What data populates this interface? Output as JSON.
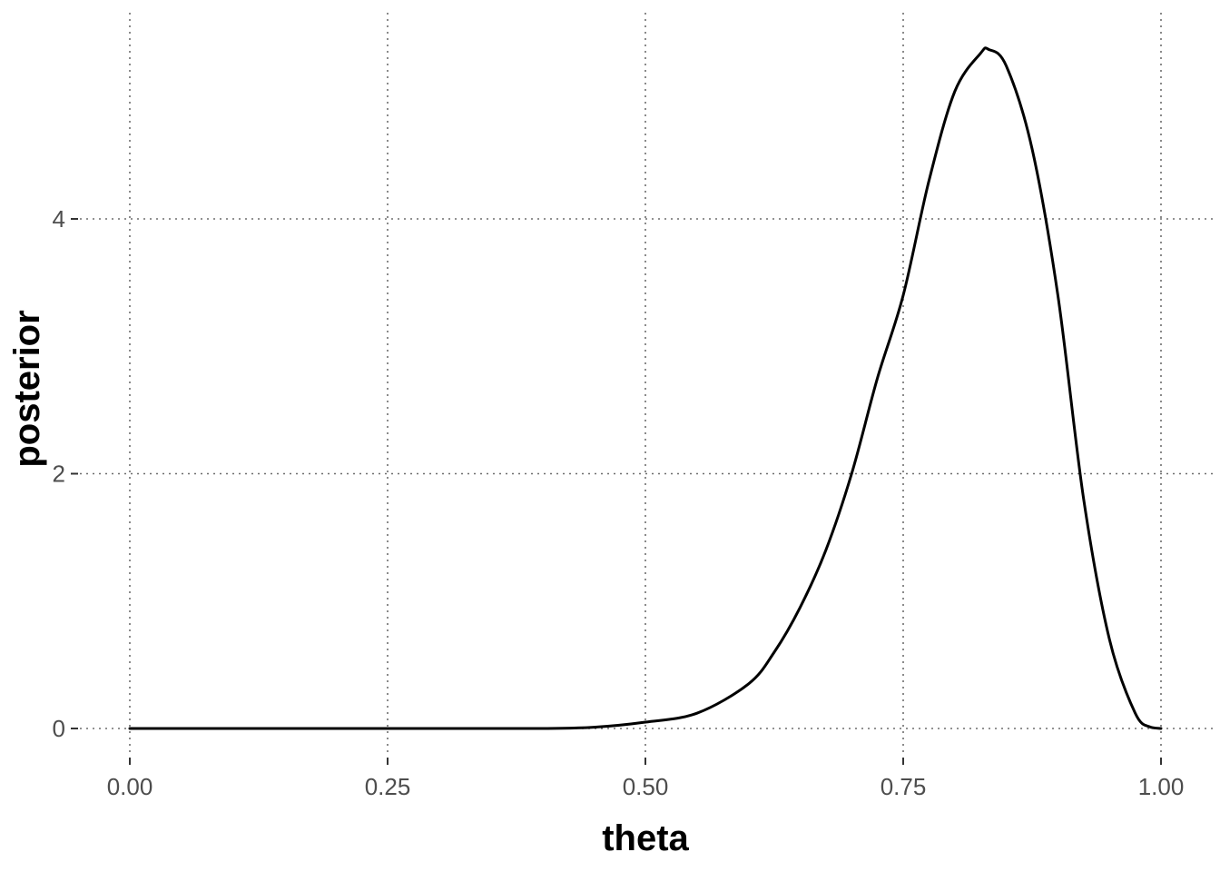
{
  "chart_data": {
    "type": "line",
    "title": "",
    "xlabel": "theta",
    "ylabel": "posterior",
    "xlim": [
      0,
      1
    ],
    "ylim": [
      -0.25,
      5.6
    ],
    "x_ticks": [
      0,
      0.25,
      0.5,
      0.75,
      1
    ],
    "x_tick_labels": [
      "0.00",
      "0.25",
      "0.50",
      "0.75",
      "1.00"
    ],
    "y_ticks": [
      0,
      2,
      4
    ],
    "y_tick_labels": [
      "0",
      "2",
      "4"
    ],
    "grid": true,
    "legend": "none",
    "line_color": "#000000",
    "series": [
      {
        "x": [
          0.0,
          0.3,
          0.4,
          0.45,
          0.5,
          0.55,
          0.6,
          0.625,
          0.65,
          0.675,
          0.7,
          0.725,
          0.75,
          0.775,
          0.8,
          0.825,
          0.833,
          0.85,
          0.875,
          0.9,
          0.925,
          0.95,
          0.975,
          0.99,
          1.0
        ],
        "y": [
          0.0,
          0.0,
          0.0,
          0.01,
          0.05,
          0.12,
          0.35,
          0.6,
          0.95,
          1.4,
          2.0,
          2.75,
          3.4,
          4.3,
          5.0,
          5.3,
          5.33,
          5.2,
          4.55,
          3.4,
          1.8,
          0.7,
          0.12,
          0.01,
          0.0
        ]
      }
    ]
  }
}
